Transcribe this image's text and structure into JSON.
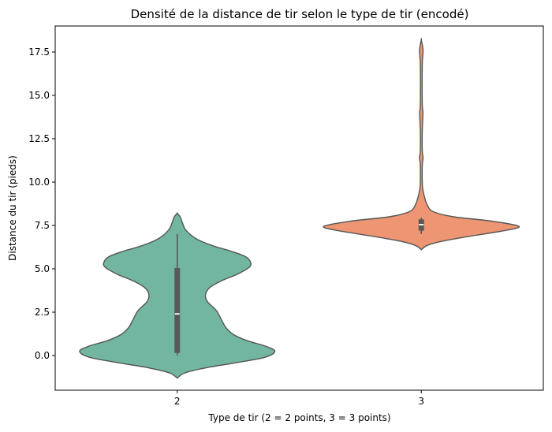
{
  "chart_data": {
    "type": "violin",
    "title": "Densité de la distance de tir selon le type de tir (encodé)",
    "xlabel": "Type de tir (2 = 2 points, 3 = 3 points)",
    "ylabel": "Distance du tir (pieds)",
    "categories": [
      "2",
      "3"
    ],
    "ylim": [
      -2.0,
      19.0
    ],
    "yticks": [
      0.0,
      2.5,
      5.0,
      7.5,
      10.0,
      12.5,
      15.0,
      17.5
    ],
    "ytick_labels": [
      "0.0",
      "2.5",
      "5.0",
      "7.5",
      "10.0",
      "12.5",
      "15.0",
      "17.5"
    ],
    "grid": false,
    "colors": {
      "violin_2": "#72b6a1",
      "violin_3": "#ee9673",
      "edge": "#555555",
      "box": "#595959",
      "median": "#ffffff"
    },
    "violins": [
      {
        "category": "2",
        "box": {
          "q1": 0.15,
          "median": 2.4,
          "q3": 5.05,
          "whisker_low": 0.0,
          "whisker_high": 7.0
        },
        "extent": [
          -1.3,
          8.2
        ],
        "density_profile": [
          [
            -1.3,
            0.0
          ],
          [
            -1.0,
            0.08
          ],
          [
            -0.7,
            0.3
          ],
          [
            -0.4,
            0.62
          ],
          [
            -0.1,
            0.9
          ],
          [
            0.25,
            1.0
          ],
          [
            0.55,
            0.9
          ],
          [
            0.85,
            0.72
          ],
          [
            1.2,
            0.58
          ],
          [
            1.6,
            0.5
          ],
          [
            2.1,
            0.45
          ],
          [
            2.6,
            0.4
          ],
          [
            3.1,
            0.31
          ],
          [
            3.5,
            0.29
          ],
          [
            3.9,
            0.33
          ],
          [
            4.3,
            0.45
          ],
          [
            4.7,
            0.62
          ],
          [
            5.1,
            0.74
          ],
          [
            5.4,
            0.75
          ],
          [
            5.7,
            0.7
          ],
          [
            6.0,
            0.56
          ],
          [
            6.3,
            0.38
          ],
          [
            6.6,
            0.24
          ],
          [
            6.9,
            0.15
          ],
          [
            7.3,
            0.08
          ],
          [
            7.7,
            0.05
          ],
          [
            8.0,
            0.03
          ],
          [
            8.2,
            0.0
          ]
        ]
      },
      {
        "category": "3",
        "box": {
          "q1": 7.2,
          "median": 7.55,
          "q3": 7.85,
          "whisker_low": 7.0,
          "whisker_high": 7.95
        },
        "extent": [
          6.1,
          18.2
        ],
        "density_profile": [
          [
            6.1,
            0.0
          ],
          [
            6.35,
            0.06
          ],
          [
            6.6,
            0.22
          ],
          [
            6.9,
            0.52
          ],
          [
            7.2,
            0.85
          ],
          [
            7.45,
            1.0
          ],
          [
            7.75,
            0.72
          ],
          [
            8.0,
            0.33
          ],
          [
            8.3,
            0.12
          ],
          [
            8.7,
            0.06
          ],
          [
            9.1,
            0.035
          ],
          [
            9.6,
            0.015
          ],
          [
            10.0,
            0.01
          ],
          [
            11.0,
            0.01
          ],
          [
            11.4,
            0.018
          ],
          [
            11.8,
            0.01
          ],
          [
            13.0,
            0.01
          ],
          [
            14.0,
            0.017
          ],
          [
            14.5,
            0.01
          ],
          [
            16.8,
            0.01
          ],
          [
            17.6,
            0.018
          ],
          [
            18.2,
            0.0
          ]
        ]
      }
    ]
  }
}
